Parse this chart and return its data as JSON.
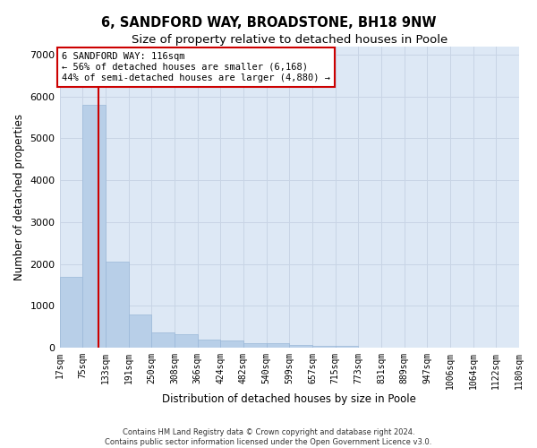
{
  "title": "6, SANDFORD WAY, BROADSTONE, BH18 9NW",
  "subtitle": "Size of property relative to detached houses in Poole",
  "xlabel": "Distribution of detached houses by size in Poole",
  "ylabel": "Number of detached properties",
  "footer_line1": "Contains HM Land Registry data © Crown copyright and database right 2024.",
  "footer_line2": "Contains public sector information licensed under the Open Government Licence v3.0.",
  "property_label": "6 SANDFORD WAY: 116sqm",
  "annotation_line1": "← 56% of detached houses are smaller (6,168)",
  "annotation_line2": "44% of semi-detached houses are larger (4,880) →",
  "bar_heights": [
    1700,
    5800,
    2050,
    800,
    370,
    310,
    190,
    160,
    110,
    105,
    55,
    50,
    50,
    0,
    0,
    0,
    0,
    0,
    0,
    0
  ],
  "tick_labels": [
    "17sqm",
    "75sqm",
    "133sqm",
    "191sqm",
    "250sqm",
    "308sqm",
    "366sqm",
    "424sqm",
    "482sqm",
    "540sqm",
    "599sqm",
    "657sqm",
    "715sqm",
    "773sqm",
    "831sqm",
    "889sqm",
    "947sqm",
    "1006sqm",
    "1064sqm",
    "1122sqm",
    "1180sqm"
  ],
  "n_bars": 20,
  "bar_color": "#b8cfe8",
  "bar_edgecolor": "#9ab8d8",
  "grid_color": "#c8d4e5",
  "background_color": "#dde8f5",
  "vline_color": "#cc0000",
  "vline_bin": 1.35,
  "ylim_max": 7200,
  "yticks": [
    0,
    1000,
    2000,
    3000,
    4000,
    5000,
    6000,
    7000
  ],
  "annotation_box_edgecolor": "#cc0000",
  "annotation_box_facecolor": "#ffffff",
  "title_fontsize": 10.5,
  "subtitle_fontsize": 9.5,
  "axis_label_fontsize": 8.5,
  "tick_fontsize": 7,
  "annotation_fontsize": 7.5,
  "footer_fontsize": 6
}
